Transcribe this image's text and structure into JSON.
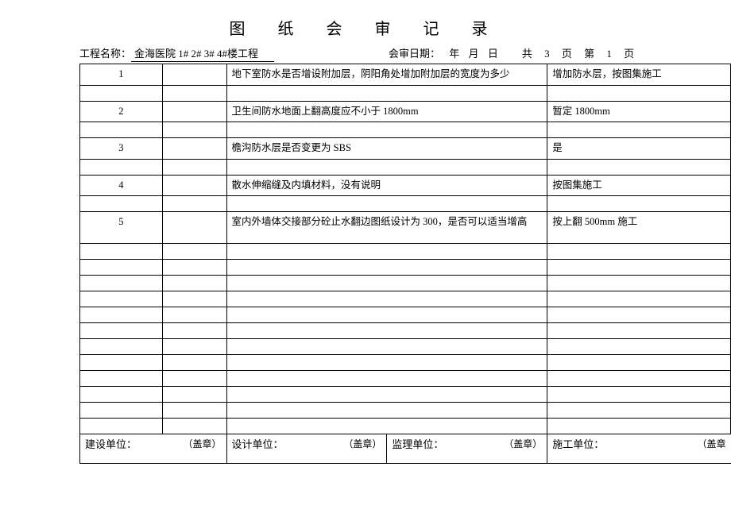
{
  "title": "图 纸 会 审 记 录",
  "labels": {
    "project": "工程名称：",
    "projectName": "金海医院 1# 2# 3# 4#楼工程",
    "reviewDate": "会审日期：",
    "year": "年",
    "month": "月",
    "day": "日",
    "total": "共",
    "totalPages": "3",
    "pageUnit": "页",
    "current": "第",
    "currentPage": "1",
    "pageUnit2": "页"
  },
  "rows": [
    {
      "num": "1",
      "c2": "",
      "c3": "地下室防水是否增设附加层，阴阳角处增加附加层的宽度为多少",
      "c4": "增加防水层，按图集施工"
    },
    {
      "num": "",
      "c2": "",
      "c3": "",
      "c4": ""
    },
    {
      "num": "2",
      "c2": "",
      "c3": "卫生间防水地面上翻高度应不小于 1800mm",
      "c4": "暂定 1800mm"
    },
    {
      "num": "",
      "c2": "",
      "c3": "",
      "c4": ""
    },
    {
      "num": "3",
      "c2": "",
      "c3": "檐沟防水层是否变更为 SBS",
      "c4": "是"
    },
    {
      "num": "",
      "c2": "",
      "c3": "",
      "c4": ""
    },
    {
      "num": "4",
      "c2": "",
      "c3": "散水伸缩缝及内填材料，没有说明",
      "c4": "按图集施工"
    },
    {
      "num": "",
      "c2": "",
      "c3": "",
      "c4": ""
    },
    {
      "num": "5",
      "c2": "",
      "c3": "室内外墙体交接部分砼止水翻边图纸设计为 300，是否可以适当增高",
      "c4": "按上翻 500mm 施工",
      "tall": true
    },
    {
      "num": "",
      "c2": "",
      "c3": "",
      "c4": ""
    },
    {
      "num": "",
      "c2": "",
      "c3": "",
      "c4": ""
    },
    {
      "num": "",
      "c2": "",
      "c3": "",
      "c4": ""
    },
    {
      "num": "",
      "c2": "",
      "c3": "",
      "c4": ""
    },
    {
      "num": "",
      "c2": "",
      "c3": "",
      "c4": ""
    },
    {
      "num": "",
      "c2": "",
      "c3": "",
      "c4": ""
    },
    {
      "num": "",
      "c2": "",
      "c3": "",
      "c4": ""
    },
    {
      "num": "",
      "c2": "",
      "c3": "",
      "c4": ""
    },
    {
      "num": "",
      "c2": "",
      "c3": "",
      "c4": ""
    },
    {
      "num": "",
      "c2": "",
      "c3": "",
      "c4": ""
    },
    {
      "num": "",
      "c2": "",
      "c3": "",
      "c4": ""
    },
    {
      "num": "",
      "c2": "",
      "c3": "",
      "c4": ""
    }
  ],
  "footer": {
    "unit1": "建设单位：",
    "unit2": "设计单位：",
    "unit3": "监理单位：",
    "unit4": "施工单位：",
    "stamp": "（盖章）",
    "stampOpen": "（盖章"
  }
}
